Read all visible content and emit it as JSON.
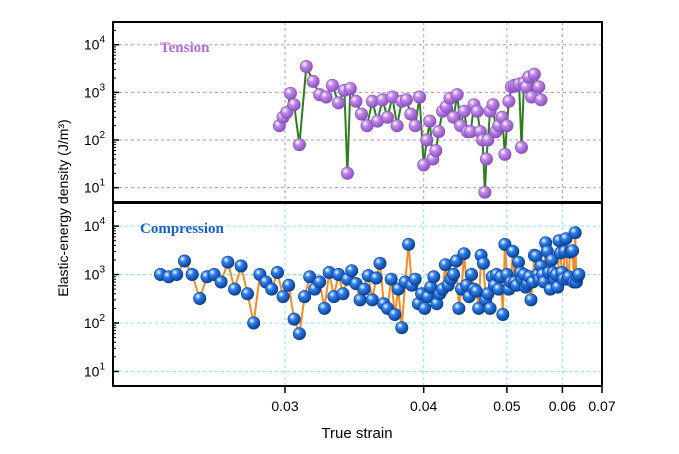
{
  "chart_data": [
    {
      "type": "scatter",
      "title": "Tension",
      "xlabel": "True strain",
      "ylabel": "Elastic-energy density (J/m³)",
      "xscale": "reciprocal",
      "xlim": [
        0.0229,
        0.07
      ],
      "yscale": "log",
      "ylim": [
        5,
        30000
      ],
      "xticks": [
        0.03,
        0.04,
        0.05,
        0.06,
        0.07
      ],
      "xtick_labels": [
        "0.03",
        "0.04",
        "0.05",
        "0.06",
        "0.07"
      ],
      "yticks": [
        10,
        100,
        1000,
        10000
      ],
      "grid": true,
      "colors": {
        "marker": "#c08ae6",
        "marker_dark": "#8a4fc2",
        "line": "#2e7d1e",
        "title": "#b06ce0",
        "grid": "#c08ae6"
      },
      "series": [
        {
          "x": [
            0.0297,
            0.0299,
            0.0301,
            0.0303,
            0.0305,
            0.0308,
            0.0312,
            0.0316,
            0.032,
            0.0324,
            0.0328,
            0.0332,
            0.0336,
            0.0338,
            0.034,
            0.0344,
            0.0348,
            0.0352,
            0.0356,
            0.036,
            0.0364,
            0.0368,
            0.0372,
            0.0376,
            0.038,
            0.0384,
            0.0388,
            0.0392,
            0.0396,
            0.04,
            0.0403,
            0.0406,
            0.0409,
            0.0412,
            0.0415,
            0.0419,
            0.0423,
            0.0427,
            0.0431,
            0.0435,
            0.0439,
            0.0443,
            0.0447,
            0.0451,
            0.0455,
            0.0459,
            0.0463,
            0.0466,
            0.0469,
            0.0471,
            0.0473,
            0.0476,
            0.048,
            0.0484,
            0.0488,
            0.0493,
            0.0497,
            0.05,
            0.0503,
            0.0507,
            0.0511,
            0.0515,
            0.0519,
            0.0523,
            0.0527,
            0.0531,
            0.0535,
            0.054,
            0.0545,
            0.0553,
            0.0557
          ],
          "y": [
            200,
            300,
            380,
            950,
            550,
            80,
            3500,
            1700,
            900,
            800,
            1400,
            600,
            1100,
            20,
            1200,
            650,
            350,
            200,
            650,
            250,
            700,
            300,
            800,
            200,
            650,
            700,
            350,
            200,
            800,
            30,
            100,
            250,
            40,
            60,
            150,
            400,
            500,
            750,
            300,
            900,
            200,
            400,
            150,
            150,
            550,
            400,
            150,
            100,
            8,
            40,
            100,
            400,
            550,
            150,
            200,
            300,
            50,
            200,
            650,
            1300,
            1400,
            1400,
            1500,
            70,
            1600,
            1300,
            2100,
            800,
            2400,
            1300,
            700
          ]
        }
      ]
    },
    {
      "type": "scatter",
      "title": "Compression",
      "xlabel": "True strain",
      "ylabel": "Elastic-energy density (J/m³)",
      "xscale": "reciprocal",
      "xlim": [
        0.0229,
        0.07
      ],
      "yscale": "log",
      "ylim": [
        5,
        30000
      ],
      "xticks": [
        0.03,
        0.04,
        0.05,
        0.06,
        0.07
      ],
      "xtick_labels": [
        "0.03",
        "0.04",
        "0.05",
        "0.06",
        "0.07"
      ],
      "yticks": [
        10,
        100,
        1000,
        10000
      ],
      "grid": true,
      "colors": {
        "marker": "#2f80ed",
        "marker_dark": "#0a3f91",
        "line": "#f28c28",
        "title": "#1a5fcf",
        "grid": "#7fe6f0"
      },
      "series": [
        {
          "x": [
            0.0245,
            0.0248,
            0.0251,
            0.0254,
            0.0257,
            0.026,
            0.0263,
            0.0266,
            0.0269,
            0.0272,
            0.0275,
            0.0278,
            0.0281,
            0.0284,
            0.0287,
            0.029,
            0.0293,
            0.0296,
            0.0299,
            0.0302,
            0.0305,
            0.0308,
            0.0311,
            0.0314,
            0.0317,
            0.032,
            0.0323,
            0.0326,
            0.0329,
            0.0332,
            0.0335,
            0.0338,
            0.0341,
            0.0344,
            0.0347,
            0.035,
            0.0353,
            0.0356,
            0.0359,
            0.0362,
            0.0365,
            0.0368,
            0.0371,
            0.0374,
            0.0377,
            0.038,
            0.0383,
            0.0386,
            0.0389,
            0.0392,
            0.0395,
            0.0398,
            0.0401,
            0.0404,
            0.0407,
            0.041,
            0.0413,
            0.0416,
            0.0419,
            0.0422,
            0.0425,
            0.0428,
            0.0431,
            0.0434,
            0.0437,
            0.044,
            0.0443,
            0.0446,
            0.0449,
            0.0452,
            0.0455,
            0.0458,
            0.0461,
            0.0464,
            0.0467,
            0.047,
            0.0473,
            0.0476,
            0.0479,
            0.0482,
            0.0485,
            0.0488,
            0.0491,
            0.0494,
            0.0497,
            0.05,
            0.0503,
            0.0506,
            0.0509,
            0.0512,
            0.0515,
            0.0518,
            0.0521,
            0.0524,
            0.0527,
            0.053,
            0.0533,
            0.0536,
            0.0539,
            0.0542,
            0.0545,
            0.0548,
            0.0551,
            0.0554,
            0.0557,
            0.056,
            0.0563,
            0.0566,
            0.0569,
            0.0572,
            0.0575,
            0.0578,
            0.0581,
            0.0584,
            0.0587,
            0.059,
            0.0593,
            0.0596,
            0.0599,
            0.0602,
            0.0605,
            0.0608,
            0.0611,
            0.0614,
            0.0617,
            0.062,
            0.0623,
            0.0626,
            0.0629,
            0.0632,
            0.0635,
            0.0638
          ],
          "y": [
            1000,
            900,
            1000,
            1900,
            1000,
            320,
            900,
            1000,
            700,
            1800,
            500,
            1500,
            400,
            100,
            1000,
            700,
            500,
            1100,
            350,
            600,
            120,
            60,
            350,
            900,
            500,
            700,
            200,
            1100,
            350,
            1000,
            400,
            800,
            1200,
            650,
            300,
            500,
            950,
            300,
            850,
            1700,
            250,
            200,
            800,
            150,
            500,
            80,
            700,
            4200,
            600,
            800,
            250,
            400,
            200,
            350,
            550,
            900,
            250,
            400,
            500,
            1600,
            600,
            800,
            1000,
            1900,
            200,
            500,
            2700,
            600,
            350,
            1000,
            500,
            450,
            200,
            2500,
            1700,
            300,
            400,
            200,
            900,
            600,
            1000,
            500,
            900,
            150,
            4200,
            1000,
            500,
            700,
            3000,
            700,
            600,
            1800,
            1100,
            800,
            1000,
            550,
            650,
            900,
            300,
            700,
            2500,
            2400,
            1000,
            800,
            1500,
            1000,
            700,
            4500,
            3000,
            1100,
            500,
            2000,
            1100,
            800,
            1000,
            550,
            5000,
            2800,
            1100,
            800,
            3000,
            5500,
            800,
            900,
            2900,
            3000,
            3100,
            700,
            7300,
            700,
            900,
            1000
          ]
        }
      ]
    }
  ]
}
